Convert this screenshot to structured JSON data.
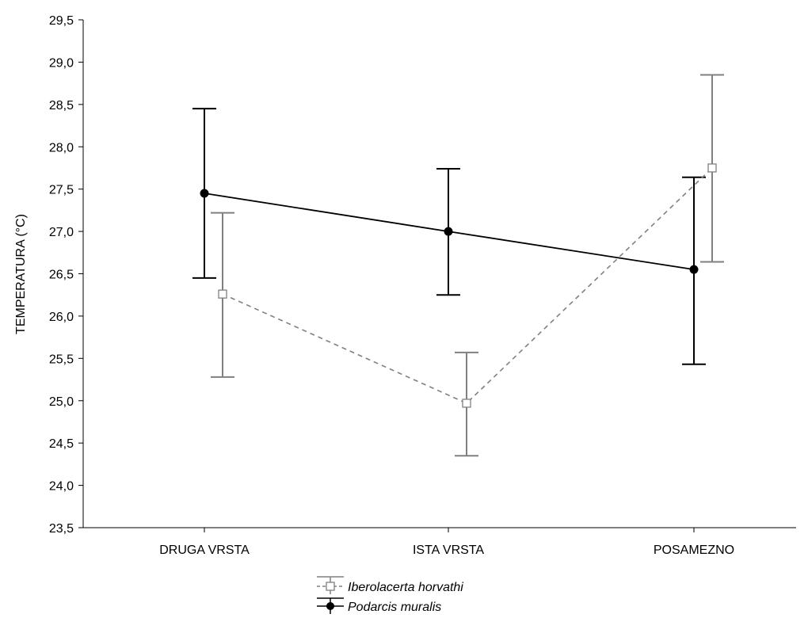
{
  "chart_data": {
    "type": "line",
    "title": "",
    "xlabel": "",
    "ylabel": "TEMPERATURA (°C)",
    "categories": [
      "DRUGA VRSTA",
      "ISTA VRSTA",
      "POSAMEZNO"
    ],
    "ylim": [
      23.5,
      29.5
    ],
    "yticks": [
      "23,5",
      "24,0",
      "24,5",
      "25,0",
      "25,5",
      "26,0",
      "26,5",
      "27,0",
      "27,5",
      "28,0",
      "28,5",
      "29,0",
      "29,5"
    ],
    "grid": false,
    "legend_position": "bottom-center",
    "series": [
      {
        "name": "Podarcis muralis",
        "color": "#000000",
        "line_style": "solid",
        "marker": "filled-circle",
        "values": [
          27.45,
          27.0,
          26.55
        ],
        "err_low": [
          26.45,
          26.25,
          25.43
        ],
        "err_high": [
          28.45,
          27.74,
          27.64
        ]
      },
      {
        "name": "Iberolacerta horvathi",
        "color": "#808080",
        "line_style": "dashed",
        "marker": "open-square",
        "values": [
          26.26,
          24.97,
          27.75
        ],
        "err_low": [
          25.28,
          24.35,
          26.64
        ],
        "err_high": [
          27.22,
          25.57,
          28.85
        ]
      }
    ]
  }
}
